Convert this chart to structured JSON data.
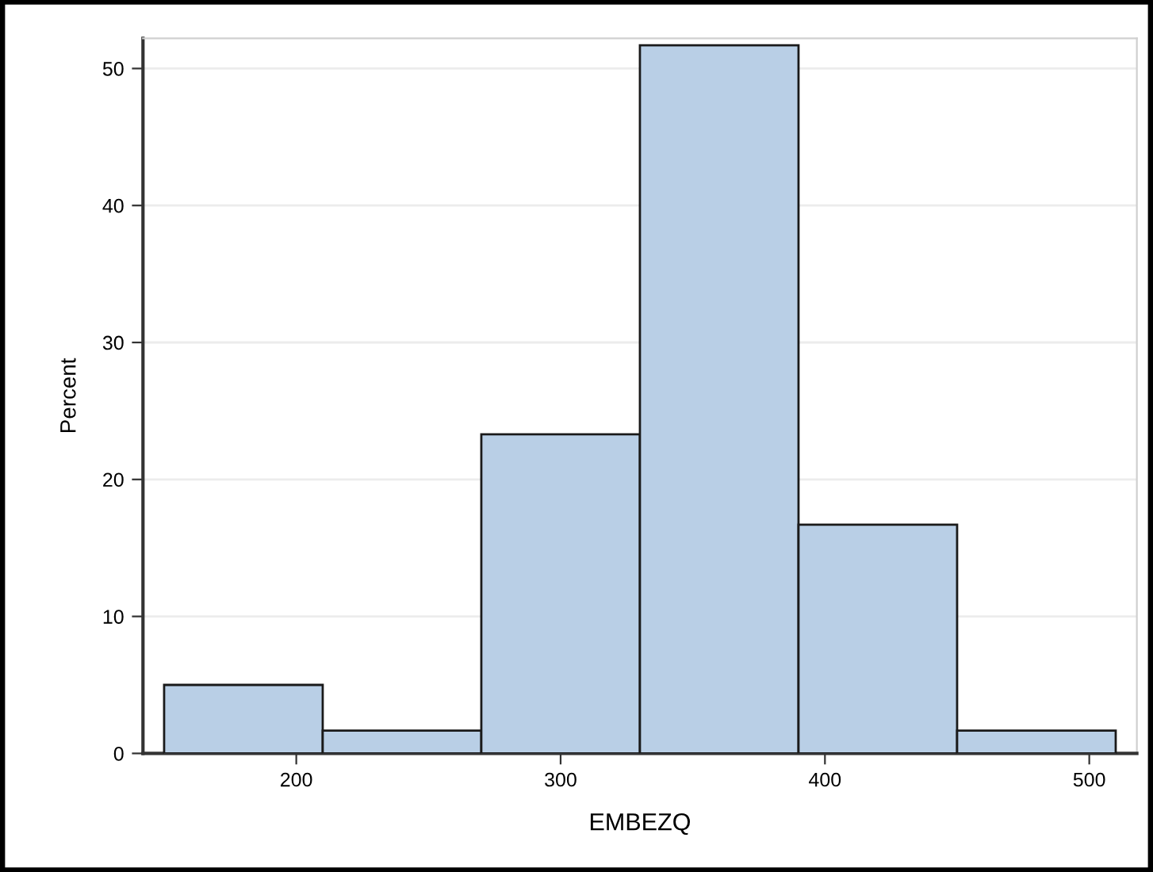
{
  "chart_data": {
    "type": "histogram",
    "xlabel": "EMBEZQ",
    "ylabel": "Percent",
    "bins": [
      150,
      210,
      270,
      330,
      390,
      450,
      510
    ],
    "values": [
      5.0,
      1.67,
      23.3,
      51.7,
      16.7,
      1.67
    ],
    "color": "#b9cfe6",
    "xlim": [
      142,
      518
    ],
    "ylim": [
      0,
      52.2
    ],
    "xticks": [
      200,
      300,
      400,
      500
    ],
    "yticks": [
      0,
      10,
      20,
      30,
      40,
      50
    ],
    "grid": "y"
  }
}
